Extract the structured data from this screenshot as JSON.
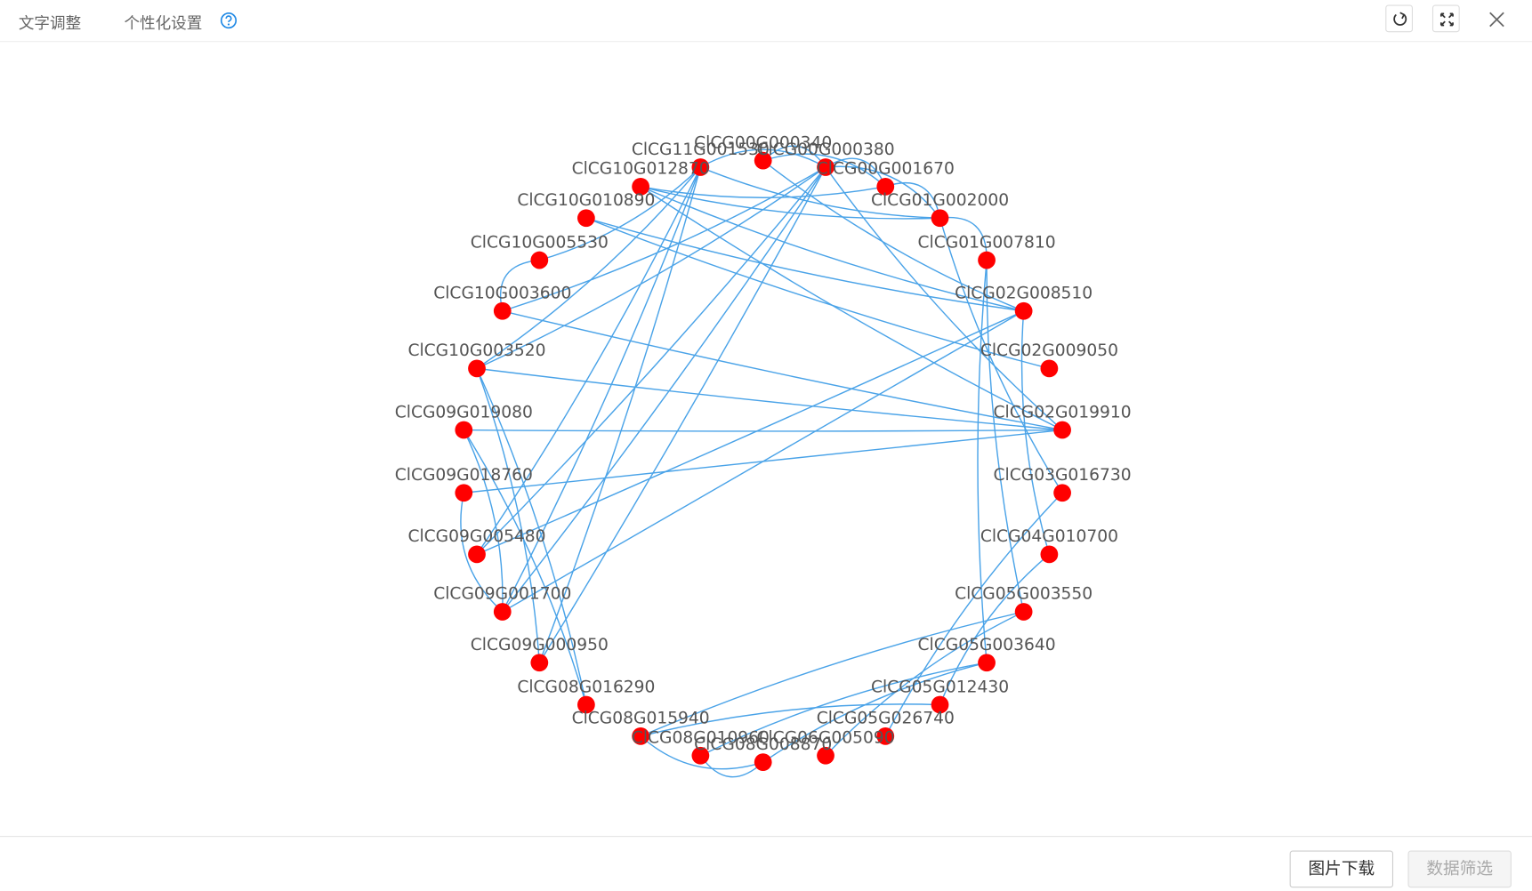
{
  "toolbar": {
    "tabs": [
      "文字调整",
      "个性化设置"
    ]
  },
  "graph": {
    "nodes": [
      "ClCG00G000340",
      "ClCG00G000380",
      "ClCG00G001670",
      "ClCG01G002000",
      "ClCG01G007810",
      "ClCG02G008510",
      "ClCG02G009050",
      "ClCG02G019910",
      "ClCG03G016730",
      "ClCG04G010700",
      "ClCG05G003550",
      "ClCG05G003640",
      "ClCG05G012430",
      "ClCG05G026740",
      "ClCG06G005090",
      "ClCG08G008870",
      "ClCG08G010960",
      "ClCG08G015940",
      "ClCG08G016290",
      "ClCG09G000950",
      "ClCG09G001700",
      "ClCG09G005480",
      "ClCG09G018760",
      "ClCG09G019080",
      "ClCG10G003520",
      "ClCG10G003600",
      "ClCG10G005530",
      "ClCG10G010890",
      "ClCG10G012870",
      "ClCG11G001530"
    ]
  },
  "footer": {
    "buttons": [
      "图片下载",
      "数据筛选"
    ]
  }
}
